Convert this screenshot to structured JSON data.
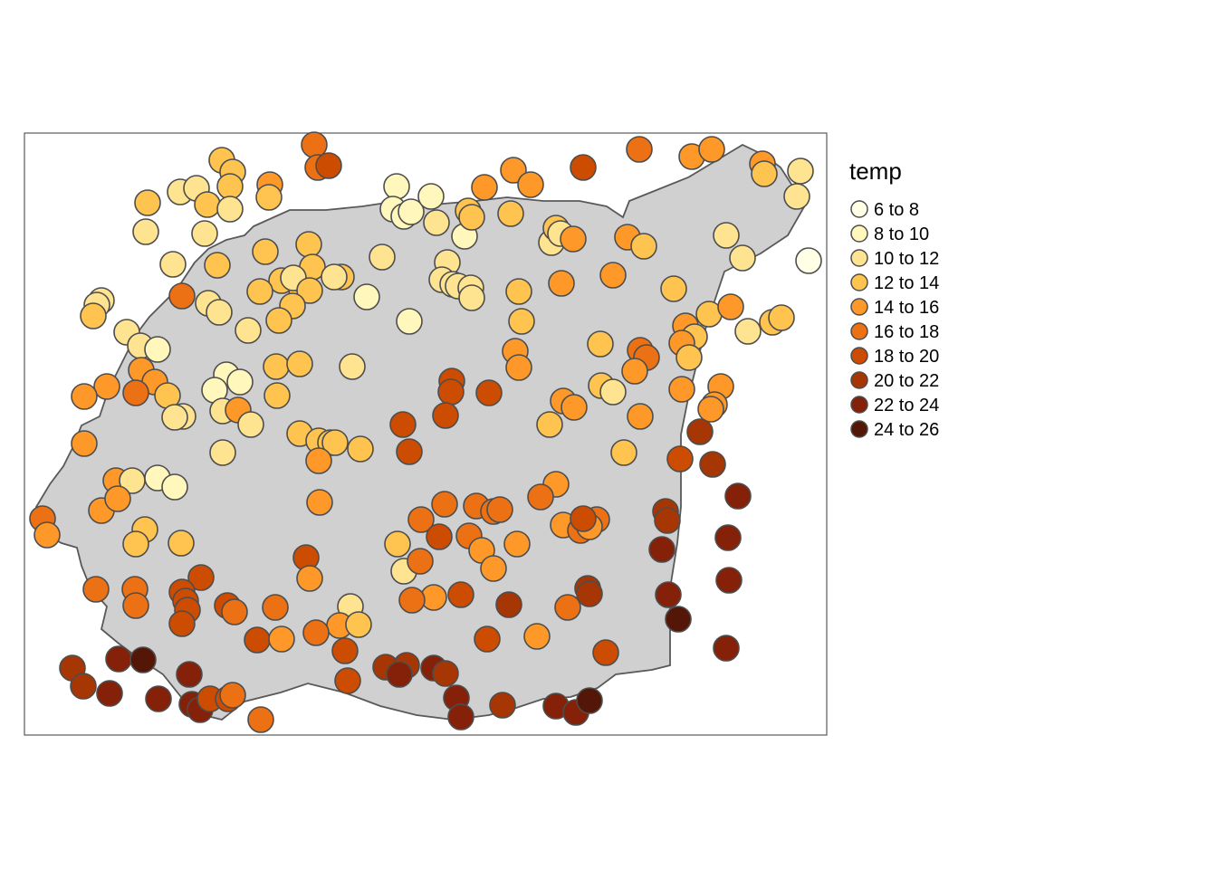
{
  "legend": {
    "title": "temp",
    "classes": [
      {
        "label": "6 to 8",
        "color": "#FFFFE5"
      },
      {
        "label": "8 to 10",
        "color": "#FFF7BC"
      },
      {
        "label": "10 to 12",
        "color": "#FEE391"
      },
      {
        "label": "12 to 14",
        "color": "#FEC44F"
      },
      {
        "label": "14 to 16",
        "color": "#FE9929"
      },
      {
        "label": "16 to 18",
        "color": "#EC7014"
      },
      {
        "label": "18 to 20",
        "color": "#CC4C02"
      },
      {
        "label": "20 to 22",
        "color": "#A63603"
      },
      {
        "label": "22 to 24",
        "color": "#842108"
      },
      {
        "label": "24 to 26",
        "color": "#541607"
      }
    ]
  },
  "colors": {
    "region_fill": "#D0D0D0",
    "region_stroke": "#595959",
    "point_stroke": "#4D4D4D",
    "frame_stroke": "#595959"
  }
}
